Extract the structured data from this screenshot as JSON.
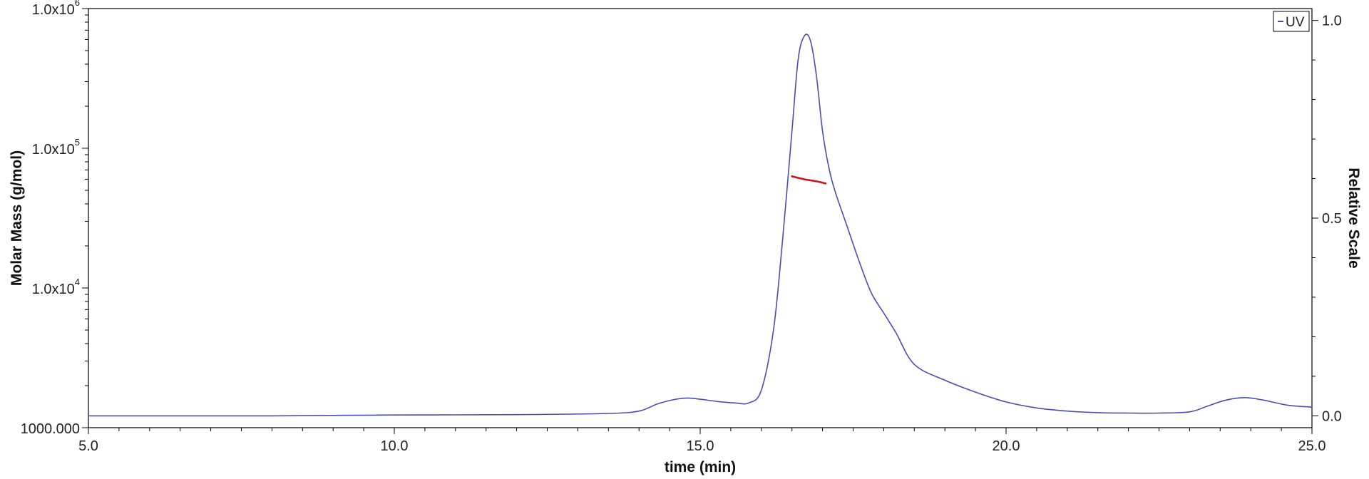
{
  "chart_data": {
    "type": "line",
    "xlabel": "time (min)",
    "ylabel_left": "Molar Mass (g/mol)",
    "ylabel_right": "Relative Scale",
    "xlim": [
      5.0,
      25.0
    ],
    "x_ticks": [
      {
        "value": 5.0,
        "label": "5.0"
      },
      {
        "value": 10.0,
        "label": "10.0"
      },
      {
        "value": 15.0,
        "label": "15.0"
      },
      {
        "value": 20.0,
        "label": "20.0"
      },
      {
        "value": 25.0,
        "label": "25.0"
      }
    ],
    "left_axis": {
      "scale": "log",
      "ylim": [
        1000,
        1000000
      ],
      "ticks": [
        {
          "value": 1000,
          "base": "1000.000",
          "exp": ""
        },
        {
          "value": 10000,
          "base": "1.0x10",
          "exp": "4"
        },
        {
          "value": 100000,
          "base": "1.0x10",
          "exp": "5"
        },
        {
          "value": 1000000,
          "base": "1.0x10",
          "exp": "6"
        }
      ]
    },
    "right_axis": {
      "scale": "linear",
      "ylim": [
        -0.03,
        1.03
      ],
      "ticks": [
        {
          "value": 0.0,
          "label": "0.0"
        },
        {
          "value": 0.5,
          "label": "0.5"
        },
        {
          "value": 1.0,
          "label": "1.0"
        }
      ]
    },
    "legend": {
      "position": "top-right",
      "entries": [
        "UV"
      ]
    },
    "series": [
      {
        "name": "UV",
        "axis": "right",
        "color": "#4b4bb4",
        "x": [
          5.0,
          8.0,
          10.0,
          12.0,
          13.5,
          14.0,
          14.3,
          14.6,
          14.8,
          15.0,
          15.3,
          15.6,
          15.8,
          16.0,
          16.2,
          16.35,
          16.5,
          16.6,
          16.7,
          16.8,
          16.9,
          17.0,
          17.1,
          17.2,
          17.4,
          17.6,
          17.8,
          18.0,
          18.2,
          18.5,
          19.0,
          19.5,
          20.0,
          20.5,
          21.0,
          21.5,
          22.0,
          22.5,
          23.0,
          23.3,
          23.6,
          23.9,
          24.2,
          24.6,
          25.0
        ],
        "y": [
          0.0,
          0.0,
          0.002,
          0.003,
          0.006,
          0.012,
          0.03,
          0.042,
          0.045,
          0.042,
          0.036,
          0.032,
          0.033,
          0.065,
          0.22,
          0.45,
          0.72,
          0.9,
          0.96,
          0.95,
          0.86,
          0.72,
          0.63,
          0.57,
          0.48,
          0.39,
          0.31,
          0.26,
          0.21,
          0.13,
          0.09,
          0.06,
          0.035,
          0.02,
          0.012,
          0.008,
          0.007,
          0.007,
          0.01,
          0.025,
          0.04,
          0.046,
          0.04,
          0.027,
          0.022
        ]
      },
      {
        "name": "",
        "axis": "left",
        "color": "#d01010",
        "x": [
          16.5,
          16.7,
          16.9,
          17.05
        ],
        "y": [
          63000,
          60000,
          58000,
          56000
        ]
      }
    ]
  }
}
